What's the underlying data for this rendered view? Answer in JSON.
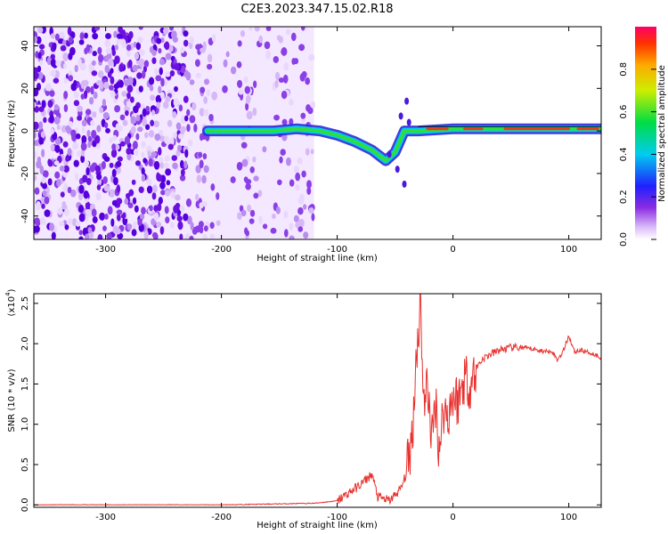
{
  "title": "C2E3.2023.347.15.02.R18",
  "colors": {
    "trace": "#e8302d",
    "axis": "#000000",
    "background": "#ffffff"
  },
  "chart_data": [
    {
      "type": "heatmap",
      "xlabel": "Height of straight line (km)",
      "ylabel": "Frequency (Hz)",
      "xlim": [
        -362,
        128
      ],
      "ylim": [
        -51,
        49
      ],
      "xticks": [
        -300,
        -200,
        -100,
        0,
        100
      ],
      "yticks": [
        -40,
        -20,
        0,
        20,
        40
      ],
      "colorbar": {
        "label": "Normalized spectral amplitude",
        "range": [
          0,
          1
        ],
        "ticks": [
          "0.0",
          "0.2",
          "0.4",
          "0.6",
          "0.8"
        ],
        "colormap": "rainbow"
      },
      "noise_region_x": [
        -362,
        -120
      ],
      "track": [
        {
          "x": -212,
          "y": 0
        },
        {
          "x": -195,
          "y": 0
        },
        {
          "x": -175,
          "y": 0
        },
        {
          "x": -155,
          "y": 0
        },
        {
          "x": -135,
          "y": 1
        },
        {
          "x": -115,
          "y": 0
        },
        {
          "x": -100,
          "y": -2
        },
        {
          "x": -85,
          "y": -5
        },
        {
          "x": -70,
          "y": -9
        },
        {
          "x": -58,
          "y": -14
        },
        {
          "x": -50,
          "y": -10
        },
        {
          "x": -42,
          "y": 0
        },
        {
          "x": -30,
          "y": 0
        },
        {
          "x": 0,
          "y": 1
        },
        {
          "x": 50,
          "y": 1
        },
        {
          "x": 100,
          "y": 1
        },
        {
          "x": 128,
          "y": 1
        }
      ]
    },
    {
      "type": "line",
      "xlabel": "Height of straight line (km)",
      "ylabel": "SNR (10 * v/v)",
      "yscale_note": "(x10",
      "yscale_exp": "4",
      "xlim": [
        -362,
        128
      ],
      "ylim": [
        -0.03,
        2.62
      ],
      "xticks": [
        -300,
        -200,
        -100,
        0,
        100
      ],
      "yticks": [
        "0.0",
        "0.5",
        "1.0",
        "1.5",
        "2.0",
        "2.5"
      ],
      "series": [
        {
          "x": [
            -362,
            -300,
            -200,
            -120,
            -100,
            -90,
            -80,
            -70,
            -65,
            -55,
            -45,
            -40,
            -35,
            -32,
            -28,
            -25,
            -22,
            -18,
            -15,
            -12,
            -8,
            -5,
            0,
            5,
            10,
            15,
            20,
            25,
            30,
            40,
            50,
            60,
            70,
            80,
            85,
            90,
            95,
            100,
            105,
            110,
            120,
            128
          ],
          "y": [
            0.0,
            0.0,
            0.0,
            0.02,
            0.05,
            0.15,
            0.25,
            0.38,
            0.1,
            0.05,
            0.2,
            0.4,
            0.9,
            1.8,
            2.5,
            1.2,
            1.5,
            0.8,
            1.3,
            0.7,
            1.2,
            1.1,
            1.35,
            1.3,
            1.6,
            1.5,
            1.7,
            1.8,
            1.85,
            1.92,
            1.95,
            1.95,
            1.93,
            1.9,
            1.92,
            1.8,
            1.9,
            2.1,
            1.9,
            1.92,
            1.88,
            1.83
          ]
        }
      ]
    }
  ]
}
